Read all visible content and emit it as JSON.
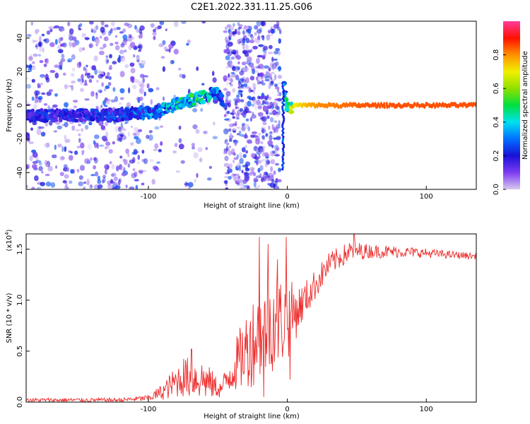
{
  "chart_data": [
    {
      "type": "heatmap",
      "title": "C2E1.2022.331.11.25.G06",
      "xlabel": "Height of straight line (km)",
      "ylabel": "Frequency (Hz)",
      "xlim": [
        -188,
        136
      ],
      "ylim": [
        -50,
        50
      ],
      "xticks": [
        -100,
        0,
        100
      ],
      "yticks": [
        -40,
        -20,
        0,
        20,
        40
      ],
      "colorbar": {
        "label": "Normalized spectral amplitude",
        "range": [
          0,
          1
        ],
        "ticks": [
          0.0,
          0.2,
          0.4,
          0.6,
          0.8
        ],
        "tick_labels": [
          "0.0",
          "0.2",
          "0.4",
          "0.6",
          "0.8"
        ],
        "colormap": [
          "#d8c8f0",
          "#7c3cf0",
          "#1a10d8",
          "#0070ff",
          "#00e0f0",
          "#00e040",
          "#90e000",
          "#f0f000",
          "#ff9000",
          "#ff1000",
          "#ff3c9c"
        ]
      },
      "ridge": [
        {
          "x": -188,
          "y": -6,
          "amp": 0.2
        },
        {
          "x": -170,
          "y": -6,
          "amp": 0.22
        },
        {
          "x": -150,
          "y": -6,
          "amp": 0.2
        },
        {
          "x": -130,
          "y": -6,
          "amp": 0.22
        },
        {
          "x": -110,
          "y": -5,
          "amp": 0.26
        },
        {
          "x": -95,
          "y": -4,
          "amp": 0.32
        },
        {
          "x": -80,
          "y": 0,
          "amp": 0.4
        },
        {
          "x": -70,
          "y": 3,
          "amp": 0.45
        },
        {
          "x": -60,
          "y": 5,
          "amp": 0.4
        },
        {
          "x": -50,
          "y": 8,
          "amp": 0.3
        },
        {
          "x": -46,
          "y": 2,
          "amp": 0.25
        },
        {
          "x": -2,
          "y": 10,
          "amp": 0.3
        },
        {
          "x": 0,
          "y": -2,
          "amp": 0.5
        },
        {
          "x": 5,
          "y": 0,
          "amp": 0.7
        },
        {
          "x": 20,
          "y": 0,
          "amp": 0.8
        },
        {
          "x": 60,
          "y": 0,
          "amp": 0.85
        },
        {
          "x": 100,
          "y": 0,
          "amp": 0.85
        },
        {
          "x": 136,
          "y": 0,
          "amp": 0.85
        }
      ],
      "noise_regions": [
        {
          "x_range": [
            -188,
            -102
          ],
          "density": "high"
        },
        {
          "x_range": [
            -102,
            -50
          ],
          "density": "low"
        },
        {
          "x_range": [
            -45,
            -5
          ],
          "density": "high"
        },
        {
          "x_range": [
            -5,
            136
          ],
          "density": "none"
        }
      ]
    },
    {
      "type": "line",
      "title": "",
      "xlabel": "Height of straight line (km)",
      "ylabel": "SNR (10 * v/v)",
      "y_multiplier": "(x10^4)",
      "y_multiplier_base": "(x10",
      "y_multiplier_exp": "4",
      "y_multiplier_close": ")",
      "xlim": [
        -188,
        136
      ],
      "ylim": [
        0,
        1.65
      ],
      "xticks": [
        -100,
        0,
        100
      ],
      "yticks": [
        0.0,
        0.5,
        1.0,
        1.5
      ],
      "ytick_labels": [
        "0.0",
        "0.5",
        "1.0",
        "1.5"
      ],
      "series": [
        {
          "color": "#ee2a2a",
          "envelope": [
            {
              "x": -188,
              "y": 0.02,
              "jitter": 0.02
            },
            {
              "x": -120,
              "y": 0.02,
              "jitter": 0.02
            },
            {
              "x": -100,
              "y": 0.04,
              "jitter": 0.03
            },
            {
              "x": -90,
              "y": 0.1,
              "jitter": 0.08
            },
            {
              "x": -75,
              "y": 0.25,
              "jitter": 0.2
            },
            {
              "x": -60,
              "y": 0.22,
              "jitter": 0.2
            },
            {
              "x": -48,
              "y": 0.12,
              "jitter": 0.08
            },
            {
              "x": -38,
              "y": 0.35,
              "jitter": 0.25
            },
            {
              "x": -25,
              "y": 0.6,
              "jitter": 0.45
            },
            {
              "x": -10,
              "y": 0.8,
              "jitter": 0.5
            },
            {
              "x": 0,
              "y": 0.8,
              "jitter": 0.4
            },
            {
              "x": 10,
              "y": 0.95,
              "jitter": 0.2
            },
            {
              "x": 20,
              "y": 1.15,
              "jitter": 0.15
            },
            {
              "x": 30,
              "y": 1.35,
              "jitter": 0.12
            },
            {
              "x": 45,
              "y": 1.48,
              "jitter": 0.1
            },
            {
              "x": 60,
              "y": 1.48,
              "jitter": 0.07
            },
            {
              "x": 90,
              "y": 1.47,
              "jitter": 0.05
            },
            {
              "x": 136,
              "y": 1.43,
              "jitter": 0.03
            }
          ],
          "spikes": [
            {
              "x": -20,
              "y": 1.62
            },
            {
              "x": -17,
              "y": 0.05
            },
            {
              "x": -14,
              "y": 1.55
            },
            {
              "x": -1,
              "y": 1.62
            },
            {
              "x": -7,
              "y": 1.4
            },
            {
              "x": 2,
              "y": 0.22
            },
            {
              "x": 48,
              "y": 1.65
            },
            {
              "x": -69,
              "y": 0.52
            }
          ]
        }
      ]
    }
  ]
}
